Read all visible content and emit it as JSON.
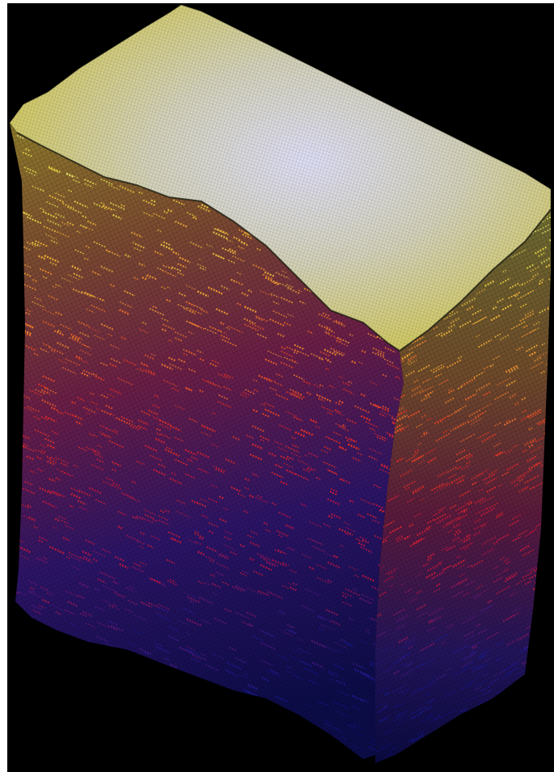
{
  "viewport": {
    "background": "#000000",
    "subject": "voxel-crystal-block",
    "colormap": [
      "#fffff0",
      "#e6e04a",
      "#f0a030",
      "#e83020",
      "#c0143c",
      "#1a1a90",
      "#0a0a60"
    ],
    "palette": {
      "top_light": "#d8d8f8",
      "top_yellow": "#d8d850",
      "side_top": "#8a8a40",
      "side_mid": "#8a2a50",
      "side_bottom": "#12124e"
    }
  }
}
